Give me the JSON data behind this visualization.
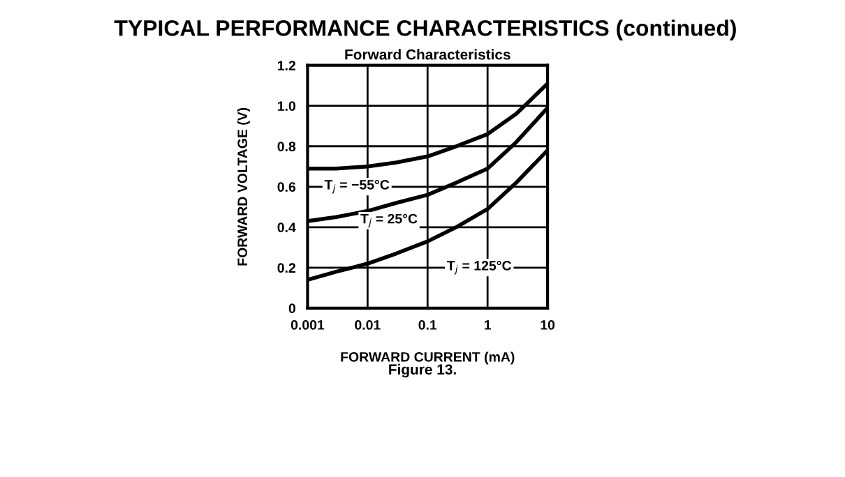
{
  "chart_data": {
    "type": "line",
    "title": "TYPICAL PERFORMANCE CHARACTERISTICS (continued)",
    "subtitle": "Forward Characteristics",
    "xlabel": "FORWARD CURRENT (mA)",
    "ylabel": "FORWARD VOLTAGE (V)",
    "x": [
      0.001,
      0.003,
      0.01,
      0.03,
      0.1,
      0.3,
      1,
      3,
      10
    ],
    "series": [
      {
        "name": "T$_{j}$ = −55°C",
        "color": "#000000",
        "values": [
          0.69,
          0.69,
          0.7,
          0.72,
          0.75,
          0.8,
          0.86,
          0.96,
          1.11
        ]
      },
      {
        "name": "T$_{j}$ = 25°C",
        "color": "#000000",
        "values": [
          0.43,
          0.45,
          0.48,
          0.52,
          0.56,
          0.62,
          0.69,
          0.82,
          0.99
        ]
      },
      {
        "name": "T$_{j}$ = 125°C",
        "color": "#000000",
        "values": [
          0.14,
          0.18,
          0.22,
          0.27,
          0.33,
          0.4,
          0.49,
          0.62,
          0.78
        ]
      }
    ],
    "annotations": [
      "Figure 13."
    ],
    "log": "x",
    "xlim": [
      0.001,
      10
    ],
    "xticks": [
      0.001,
      0.01,
      0.1,
      1,
      10
    ],
    "ylim": [
      0,
      1.2
    ],
    "yticks": [
      0,
      0.2,
      0.4,
      0.6,
      0.8,
      {
        "value": 1,
        "label": "1.0"
      },
      1.2
    ],
    "grid": true,
    "line_style": "solid",
    "marker": "none"
  }
}
